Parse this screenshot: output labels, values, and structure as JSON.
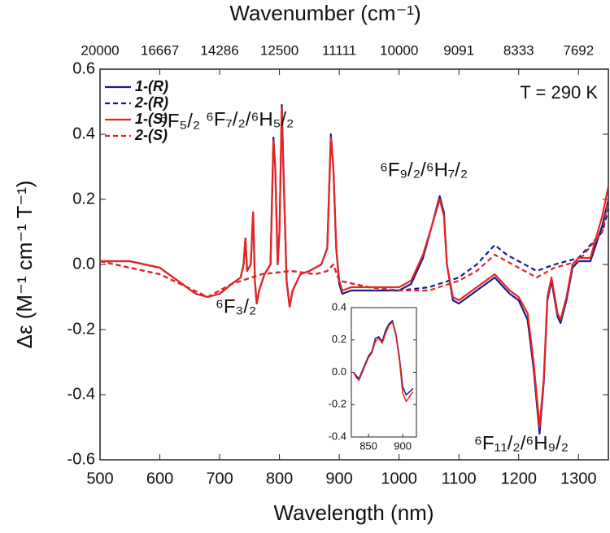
{
  "chart_data": [
    {
      "type": "line",
      "title_top": "Wavenumber (cm⁻¹)",
      "x_label": "Wavelength (nm)",
      "y_label": "Δε (M⁻¹ cm⁻¹ T⁻¹)",
      "xlim": [
        500,
        1350
      ],
      "xticks": [
        500,
        600,
        700,
        800,
        900,
        1000,
        1100,
        1200,
        1300
      ],
      "x2ticks": [
        20000,
        16667,
        14286,
        12500,
        11111,
        10000,
        9091,
        8333,
        7692
      ],
      "ylim": [
        -0.6,
        0.6
      ],
      "yticks": [
        0.6,
        0.4,
        0.2,
        {
          "value": 0,
          "label": "0.0"
        },
        -0.2,
        -0.4,
        -0.6
      ],
      "legend": "upper left",
      "annotations": [
        "T = 290 K",
        "⁶F₅/₂",
        "⁶F₇/₂/⁶H₅/₂",
        "⁶F₉/₂/⁶H₇/₂",
        "⁶F₃/₂",
        "⁶F₁₁/₂/⁶H₉/₂"
      ],
      "series": [
        {
          "name": "1-(R)",
          "color": "#1a1a8c",
          "dash": false,
          "x": [
            500,
            550,
            600,
            630,
            660,
            680,
            700,
            720,
            735,
            740,
            743,
            746,
            752,
            756,
            759,
            762,
            766,
            775,
            785,
            790,
            793,
            797,
            800,
            804,
            808,
            812,
            817,
            822,
            835,
            850,
            870,
            880,
            886,
            890,
            895,
            900,
            905,
            920,
            950,
            1000,
            1020,
            1040,
            1055,
            1068,
            1075,
            1080,
            1090,
            1100,
            1130,
            1160,
            1170,
            1185,
            1200,
            1215,
            1225,
            1235,
            1242,
            1248,
            1255,
            1265,
            1270,
            1280,
            1290,
            1300,
            1320,
            1340,
            1350
          ],
          "values": [
            0.01,
            0.01,
            -0.01,
            -0.05,
            -0.09,
            -0.1,
            -0.09,
            -0.06,
            -0.04,
            0.0,
            0.08,
            -0.02,
            0.0,
            0.16,
            -0.05,
            -0.12,
            -0.08,
            -0.03,
            0.0,
            0.39,
            0.3,
            0.0,
            0.1,
            0.49,
            0.2,
            -0.05,
            -0.13,
            -0.08,
            -0.03,
            -0.02,
            0.0,
            0.05,
            0.4,
            0.3,
            0.05,
            -0.06,
            -0.09,
            -0.08,
            -0.08,
            -0.08,
            -0.06,
            0.02,
            0.12,
            0.21,
            0.16,
            0.0,
            -0.11,
            -0.12,
            -0.08,
            -0.04,
            -0.06,
            -0.09,
            -0.11,
            -0.17,
            -0.32,
            -0.52,
            -0.36,
            -0.11,
            -0.05,
            -0.16,
            -0.18,
            -0.11,
            -0.01,
            0.01,
            0.01,
            0.12,
            0.2
          ]
        },
        {
          "name": "2-(R)",
          "color": "#1a1a8c",
          "dash": true,
          "x": [
            500,
            600,
            680,
            720,
            770,
            820,
            860,
            880,
            890,
            900,
            950,
            1000,
            1050,
            1100,
            1130,
            1160,
            1180,
            1200,
            1230,
            1260,
            1300,
            1340,
            1350
          ],
          "values": [
            0.01,
            -0.03,
            -0.1,
            -0.06,
            -0.03,
            -0.02,
            -0.03,
            -0.02,
            0.0,
            -0.05,
            -0.07,
            -0.08,
            -0.07,
            -0.04,
            0.0,
            0.06,
            0.03,
            0.01,
            -0.02,
            0.0,
            0.02,
            0.1,
            0.17
          ]
        },
        {
          "name": "1-(S)",
          "color": "#e8241f",
          "dash": false,
          "x": [
            500,
            550,
            600,
            630,
            660,
            680,
            700,
            720,
            735,
            740,
            743,
            746,
            752,
            756,
            759,
            762,
            766,
            775,
            785,
            790,
            793,
            797,
            800,
            804,
            808,
            812,
            817,
            822,
            835,
            850,
            870,
            880,
            886,
            890,
            895,
            900,
            905,
            920,
            950,
            1000,
            1020,
            1040,
            1055,
            1068,
            1075,
            1080,
            1090,
            1100,
            1130,
            1160,
            1170,
            1185,
            1200,
            1215,
            1225,
            1235,
            1242,
            1248,
            1255,
            1265,
            1270,
            1280,
            1290,
            1300,
            1320,
            1340,
            1350
          ],
          "values": [
            0.01,
            0.01,
            -0.01,
            -0.05,
            -0.09,
            -0.1,
            -0.09,
            -0.06,
            -0.04,
            0.0,
            0.08,
            -0.02,
            0.0,
            0.16,
            -0.05,
            -0.12,
            -0.08,
            -0.03,
            0.0,
            0.38,
            0.3,
            0.0,
            0.1,
            0.48,
            0.2,
            -0.05,
            -0.13,
            -0.08,
            -0.03,
            -0.02,
            0.0,
            0.05,
            0.39,
            0.3,
            0.05,
            -0.05,
            -0.08,
            -0.07,
            -0.07,
            -0.07,
            -0.05,
            0.03,
            0.12,
            0.2,
            0.15,
            0.0,
            -0.1,
            -0.11,
            -0.07,
            -0.03,
            -0.05,
            -0.08,
            -0.1,
            -0.15,
            -0.3,
            -0.5,
            -0.35,
            -0.1,
            -0.04,
            -0.15,
            -0.17,
            -0.1,
            0.0,
            0.02,
            0.02,
            0.15,
            0.24
          ]
        },
        {
          "name": "2-(S)",
          "color": "#e8241f",
          "dash": true,
          "x": [
            500,
            600,
            680,
            720,
            770,
            820,
            860,
            880,
            890,
            900,
            950,
            1000,
            1050,
            1100,
            1130,
            1160,
            1180,
            1200,
            1230,
            1260,
            1300,
            1340,
            1350
          ],
          "values": [
            0.01,
            -0.03,
            -0.1,
            -0.06,
            -0.03,
            -0.02,
            -0.03,
            -0.02,
            0.0,
            -0.05,
            -0.07,
            -0.08,
            -0.08,
            -0.05,
            -0.02,
            0.03,
            0.01,
            -0.01,
            -0.04,
            -0.01,
            0.01,
            0.1,
            0.2
          ]
        }
      ]
    },
    {
      "type": "line",
      "xlim": [
        825,
        920
      ],
      "xticks": [
        850,
        900
      ],
      "ylim": [
        -0.4,
        0.4
      ],
      "yticks": [
        0.4,
        0.2,
        {
          "value": 0,
          "label": "0.0"
        },
        -0.2,
        -0.4
      ],
      "series": [
        {
          "color": "#1a1a8c",
          "x": [
            828,
            832,
            836,
            840,
            845,
            850,
            855,
            860,
            865,
            870,
            875,
            880,
            885,
            890,
            895,
            900,
            905,
            910,
            915
          ],
          "values": [
            0.0,
            -0.02,
            -0.04,
            0.0,
            0.05,
            0.1,
            0.13,
            0.21,
            0.22,
            0.19,
            0.26,
            0.3,
            0.32,
            0.24,
            0.1,
            -0.09,
            -0.14,
            -0.12,
            -0.1
          ]
        },
        {
          "color": "#e8241f",
          "x": [
            828,
            832,
            836,
            840,
            845,
            850,
            855,
            860,
            865,
            870,
            875,
            880,
            885,
            890,
            895,
            900,
            905,
            910,
            915
          ],
          "values": [
            0.0,
            -0.03,
            -0.05,
            -0.01,
            0.04,
            0.09,
            0.12,
            0.19,
            0.21,
            0.18,
            0.24,
            0.29,
            0.31,
            0.23,
            0.08,
            -0.13,
            -0.18,
            -0.15,
            -0.12
          ]
        }
      ]
    }
  ]
}
